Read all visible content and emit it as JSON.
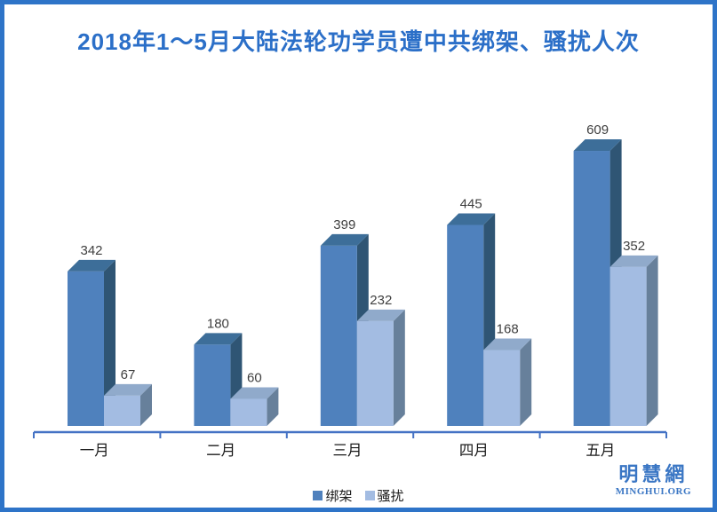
{
  "page": {
    "title": "2018年1～5月大陆法轮功学员遭中共绑架、骚扰人次",
    "title_color": "#2B6FC8",
    "border_color": "#2E74C8",
    "background": "#FFFFFF"
  },
  "chart_data": {
    "type": "bar",
    "style": "3d-clustered-column",
    "title": "2018年1～5月大陆法轮功学员遭中共绑架、骚扰人次",
    "categories": [
      "一月",
      "二月",
      "三月",
      "四月",
      "五月"
    ],
    "series": [
      {
        "name": "绑架",
        "values": [
          342,
          180,
          399,
          445,
          609
        ],
        "color": "#4F81BD",
        "top_color": "#3D6E99",
        "side_color": "#2F5574"
      },
      {
        "name": "骚扰",
        "values": [
          67,
          60,
          232,
          168,
          352
        ],
        "color": "#A3BCE2",
        "top_color": "#90AACB",
        "side_color": "#67809B"
      }
    ],
    "xlabel": "",
    "ylabel": "",
    "ylim": [
      0,
      650
    ],
    "grid": false,
    "data_labels": true,
    "value_label_color": "#3F3F3F",
    "category_label_color": "#1A1A1A",
    "axis_color": "#4472C4",
    "legend_position": "bottom"
  },
  "logo": {
    "name": "明慧網",
    "url_text": "MINGHUI.ORG",
    "color": "#3A76C4"
  }
}
